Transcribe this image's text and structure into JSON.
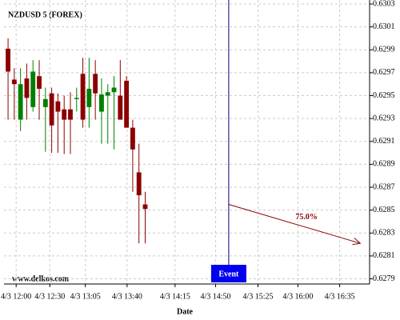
{
  "chart_data": {
    "type": "candlestick",
    "title": "NZDUSD 5 (FOREX)",
    "watermark": "www.delkos.com",
    "x_label": "Date",
    "open": [
      0.62991,
      0.62964,
      0.62929,
      0.62965,
      0.6294,
      0.62967,
      0.6294,
      0.62952,
      0.62945,
      0.62938,
      0.62938,
      0.62947,
      0.62969,
      0.6294,
      0.62969,
      0.62936,
      0.6295,
      0.62953,
      0.6295,
      0.62963,
      0.62922,
      0.62883,
      0.62855
    ],
    "high": [
      0.63,
      0.62974,
      0.62974,
      0.62978,
      0.62981,
      0.62981,
      0.62957,
      0.62957,
      0.62952,
      0.6295,
      0.62953,
      0.62957,
      0.62983,
      0.62983,
      0.62981,
      0.62965,
      0.6296,
      0.62967,
      0.62981,
      0.62967,
      0.62929,
      0.62908,
      0.62866
    ],
    "low": [
      0.62929,
      0.62929,
      0.62919,
      0.62929,
      0.62936,
      0.62929,
      0.62901,
      0.629,
      0.629,
      0.62899,
      0.62899,
      0.62936,
      0.62922,
      0.62922,
      0.62929,
      0.62908,
      0.62908,
      0.62903,
      0.62929,
      0.62922,
      0.62866,
      0.62821,
      0.62821
    ],
    "close": [
      0.62971,
      0.6296,
      0.6296,
      0.62948,
      0.62971,
      0.62956,
      0.62947,
      0.62924,
      0.62936,
      0.62929,
      0.62929,
      0.62948,
      0.62929,
      0.62956,
      0.62952,
      0.62951,
      0.62953,
      0.62957,
      0.62929,
      0.62922,
      0.62903,
      0.62863,
      0.62851
    ],
    "up_color": "#008000",
    "down_color": "#8b0000",
    "xlim": [
      -0.65,
      58
    ],
    "ylim": [
      0.627855,
      0.630335
    ],
    "xticks": [
      {
        "value": 1.3,
        "label": "4/3 12:00"
      },
      {
        "value": 6.7,
        "label": "4/3 12:30"
      },
      {
        "value": 12.4,
        "label": "4/3 13:05"
      },
      {
        "value": 19.1,
        "label": "4/3 13:40"
      },
      {
        "value": 26.8,
        "label": "4/3 14:15"
      },
      {
        "value": 33.3,
        "label": "4/3 14:50"
      },
      {
        "value": 40.1,
        "label": "4/3 15:25"
      },
      {
        "value": 46.5,
        "label": "4/3 16:00"
      },
      {
        "value": 53.2,
        "label": "4/3 16:35"
      }
    ],
    "yticks": [
      0.6279,
      0.6281,
      0.6283,
      0.6285,
      0.6287,
      0.6289,
      0.6291,
      0.6293,
      0.6295,
      0.6297,
      0.6299,
      0.6301,
      0.6303
    ],
    "grid": true,
    "event": {
      "label": "Event",
      "x": 35.4
    },
    "projection": {
      "label": "75.0%",
      "x": [
        35.4,
        56.5
      ],
      "y": [
        0.62855,
        0.62821
      ]
    }
  }
}
